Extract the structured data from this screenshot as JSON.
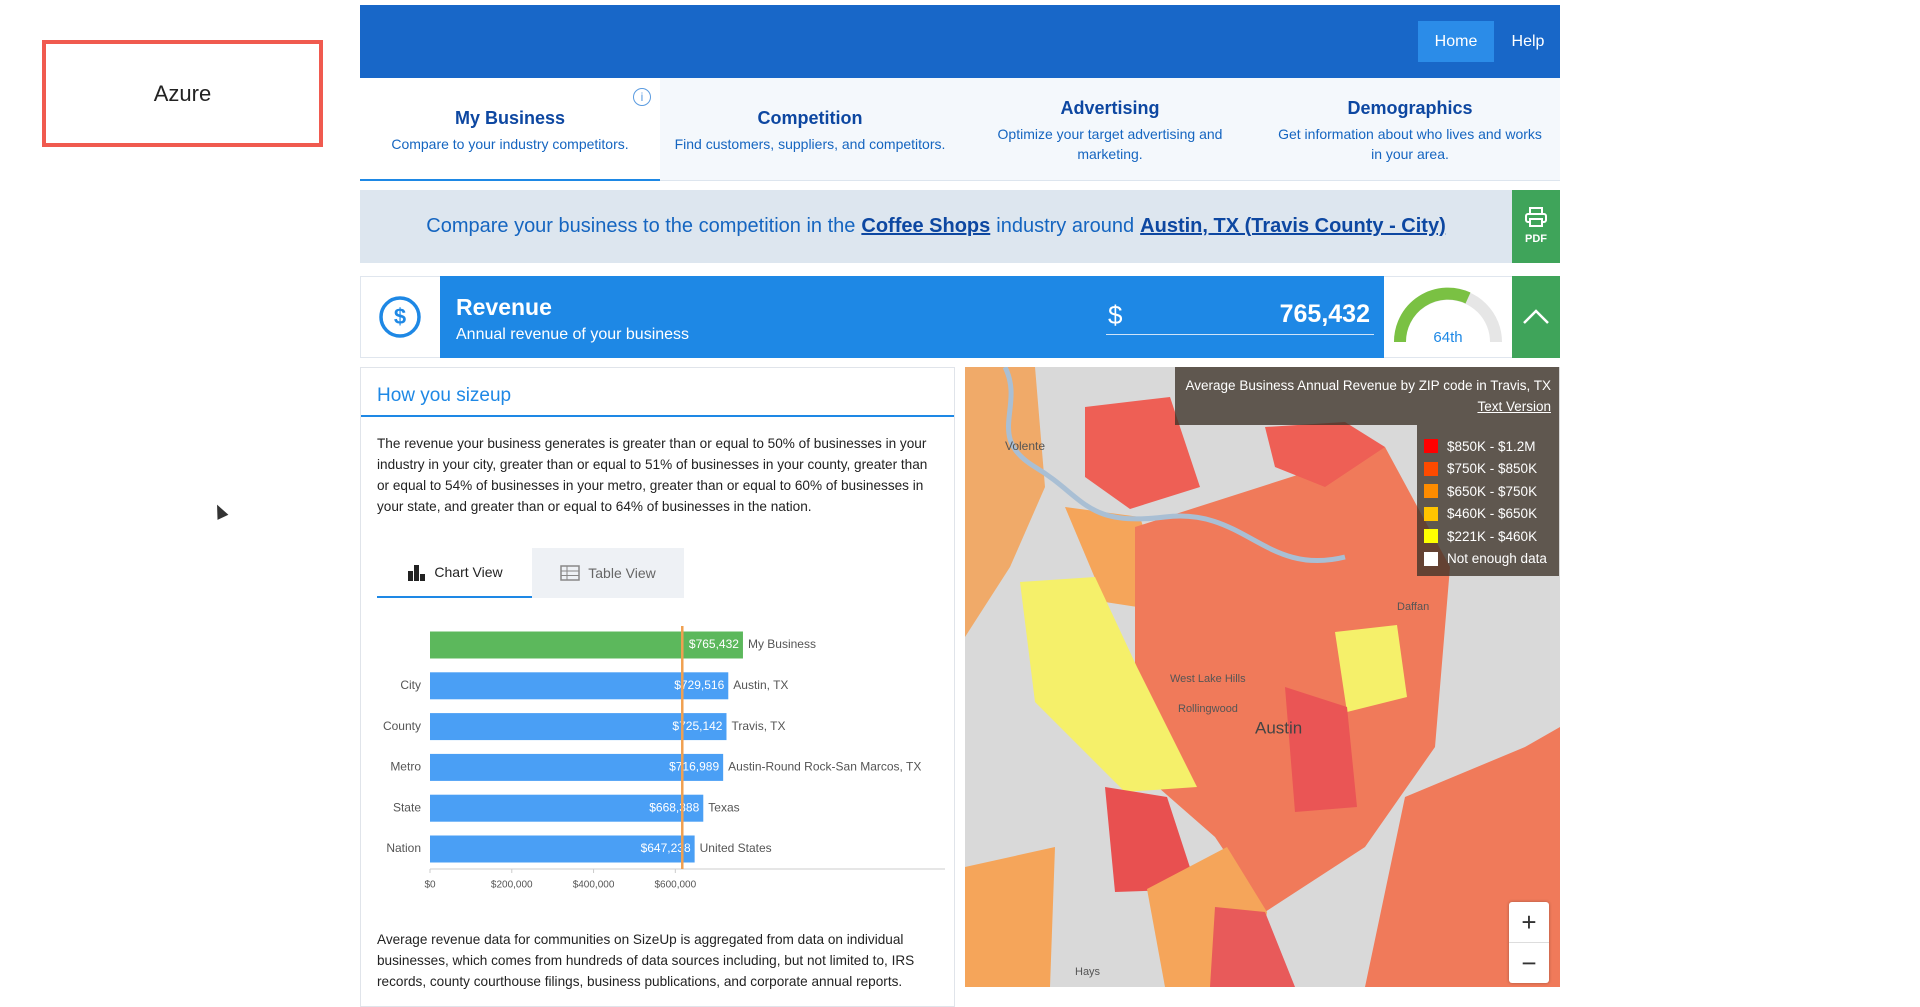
{
  "sidebar": {
    "label": "Azure"
  },
  "nav": {
    "items": [
      "Home",
      "Help"
    ]
  },
  "tabs": [
    {
      "title": "My Business",
      "subtitle": "Compare to your industry competitors."
    },
    {
      "title": "Competition",
      "subtitle": "Find customers, suppliers, and competitors."
    },
    {
      "title": "Advertising",
      "subtitle": "Optimize your target advertising and marketing."
    },
    {
      "title": "Demographics",
      "subtitle": "Get information about who lives and works in your area."
    }
  ],
  "banner": {
    "prefix": "Compare your business to the competition in the",
    "industry": "Coffee Shops",
    "middle": "industry around",
    "location": "Austin, TX (Travis County - City)",
    "pdf": "PDF"
  },
  "revenue": {
    "title": "Revenue",
    "subtitle": "Annual revenue of your business",
    "currency": "$",
    "value": "765,432",
    "percentile": "64th"
  },
  "sizeup": {
    "heading": "How you sizeup",
    "text": "The revenue your business generates is greater than or equal to 50% of businesses in your industry in your city, greater than or equal to 51% of businesses in your county, greater than or equal to 54% of businesses in your metro, greater than or equal to 60% of businesses in your state, and greater than or equal to 64% of businesses in the nation.",
    "views": [
      "Chart View",
      "Table View"
    ],
    "footnote": "Average revenue data for communities on SizeUp is aggregated from data on individual businesses, which comes from hundreds of data sources including, but not limited to, IRS records, county courthouse filings, business publications, and corporate annual reports."
  },
  "chart_data": {
    "type": "bar",
    "orientation": "horizontal",
    "categories": [
      null,
      "City",
      "County",
      "Metro",
      "State",
      "Nation"
    ],
    "labels": [
      "My Business",
      "Austin, TX",
      "Travis, TX",
      "Austin-Round Rock-San Marcos, TX",
      "Texas",
      "United States"
    ],
    "values": [
      765432,
      729516,
      725142,
      716989,
      668388,
      647238
    ],
    "value_labels": [
      "$765,432",
      "$729,516",
      "$725,142",
      "$716,989",
      "$668,388",
      "$647,238"
    ],
    "colors": [
      "#5cb85c",
      "#4a9ff5",
      "#4a9ff5",
      "#4a9ff5",
      "#4a9ff5",
      "#4a9ff5"
    ],
    "xlim": [
      0,
      1240000
    ],
    "xticks": [
      {
        "value": 0,
        "label": "$0"
      },
      {
        "value": 200000,
        "label": "$200,000"
      },
      {
        "value": 400000,
        "label": "$400,000"
      },
      {
        "value": 600000,
        "label": "$600,000"
      }
    ],
    "reference_value": 617000,
    "reference_color": "#f0a050"
  },
  "map": {
    "title": "Average Business Annual Revenue by ZIP code in Travis, TX",
    "link": "Text Version",
    "legend": [
      {
        "label": "$850K - $1.2M",
        "color": "#ff0000"
      },
      {
        "label": "$750K - $850K",
        "color": "#ff4a00"
      },
      {
        "label": "$650K - $750K",
        "color": "#ff8c00"
      },
      {
        "label": "$460K - $650K",
        "color": "#ffc400"
      },
      {
        "label": "$221K - $460K",
        "color": "#ffff00"
      },
      {
        "label": "Not enough data",
        "color": "#ffffff"
      }
    ],
    "places": [
      "Volente",
      "Austin",
      "West Lake Hills",
      "Rollingwood",
      "Daffan",
      "Hays"
    ],
    "zoom": [
      "+",
      "−"
    ]
  }
}
